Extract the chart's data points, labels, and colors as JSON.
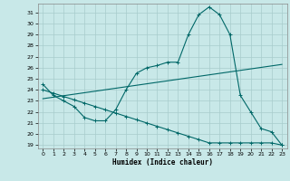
{
  "xlabel": "Humidex (Indice chaleur)",
  "background_color": "#c8e8e8",
  "grid_color": "#a8cccc",
  "line_color": "#006868",
  "xlim": [
    -0.5,
    23.5
  ],
  "ylim": [
    18.7,
    31.8
  ],
  "yticks": [
    19,
    20,
    21,
    22,
    23,
    24,
    25,
    26,
    27,
    28,
    29,
    30,
    31
  ],
  "xticks": [
    0,
    1,
    2,
    3,
    4,
    5,
    6,
    7,
    8,
    9,
    10,
    11,
    12,
    13,
    14,
    15,
    16,
    17,
    18,
    19,
    20,
    21,
    22,
    23
  ],
  "curve1_x": [
    0,
    1,
    2,
    3,
    4,
    5,
    6,
    7,
    8,
    9,
    10,
    11,
    12,
    13,
    14,
    15,
    16,
    17,
    18,
    19,
    20,
    21,
    22,
    23
  ],
  "curve1_y": [
    24.5,
    23.5,
    23.0,
    22.5,
    21.5,
    21.2,
    21.2,
    22.2,
    24.0,
    25.5,
    26.0,
    26.2,
    26.5,
    26.5,
    29.0,
    30.8,
    31.5,
    30.8,
    29.0,
    23.5,
    22.0,
    20.5,
    20.2,
    19.0
  ],
  "curve2_x": [
    0,
    23
  ],
  "curve2_y": [
    23.2,
    26.3
  ],
  "curve3_x": [
    0,
    1,
    2,
    3,
    4,
    5,
    6,
    7,
    8,
    9,
    10,
    11,
    12,
    13,
    14,
    15,
    16,
    17,
    18,
    19,
    20,
    21,
    22,
    23
  ],
  "curve3_y": [
    24.0,
    23.7,
    23.4,
    23.1,
    22.8,
    22.5,
    22.2,
    21.9,
    21.6,
    21.3,
    21.0,
    20.7,
    20.4,
    20.1,
    19.8,
    19.5,
    19.2,
    19.2,
    19.2,
    19.2,
    19.2,
    19.2,
    19.2,
    19.0
  ]
}
